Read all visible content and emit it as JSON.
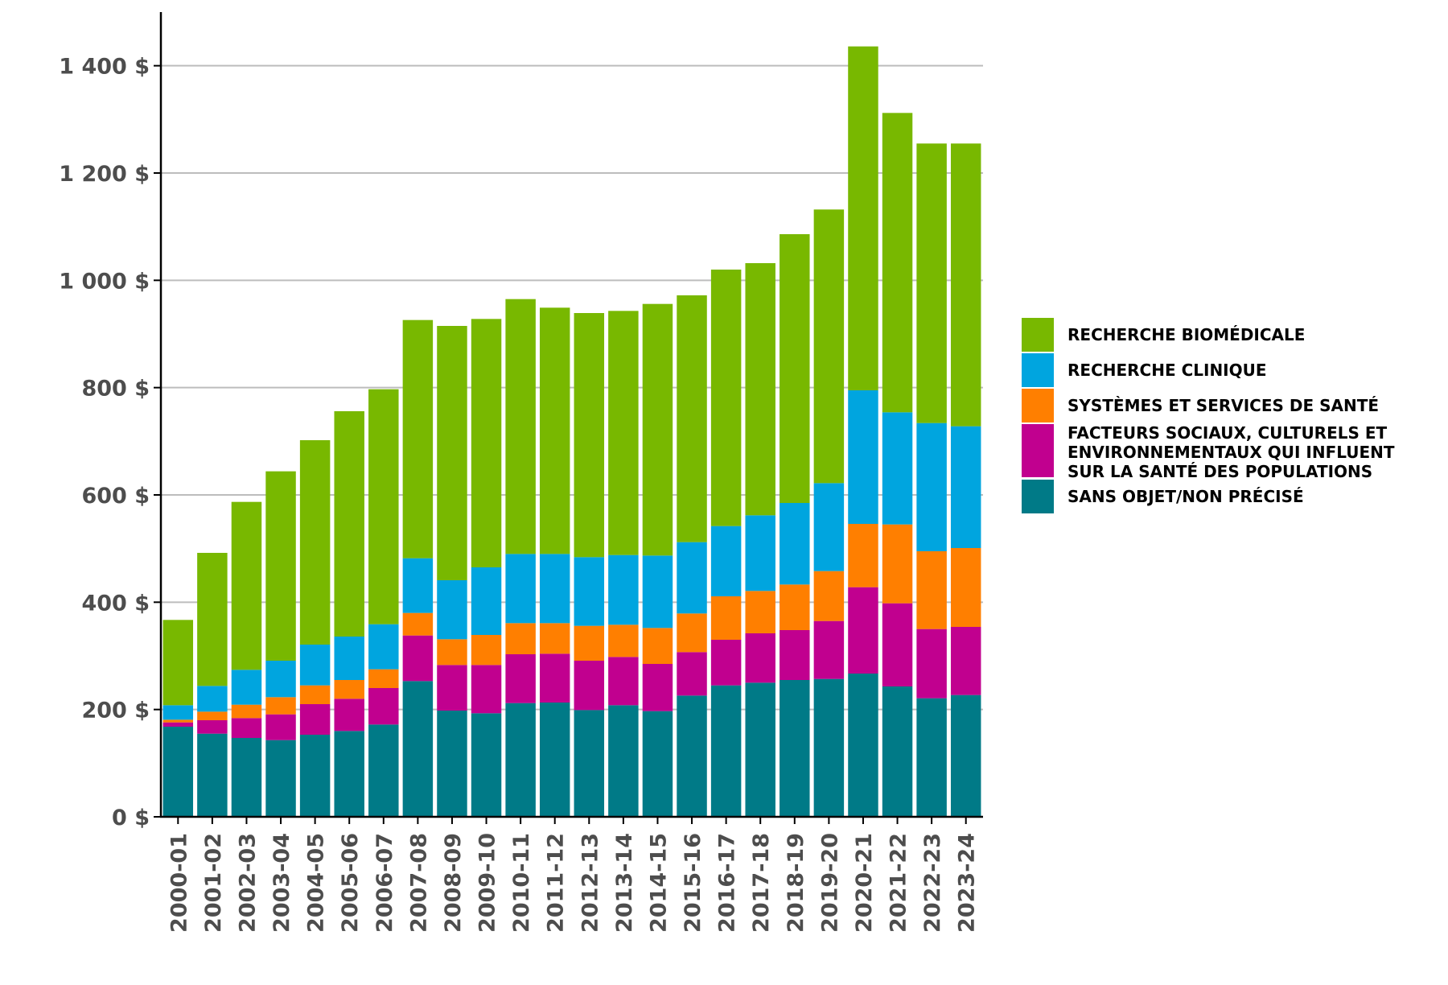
{
  "chart_data": {
    "type": "bar",
    "stacked": true,
    "grid": "horizontal",
    "legend_position": "right",
    "ylim": [
      0,
      1500
    ],
    "yticks": [
      0,
      200,
      400,
      600,
      800,
      1000,
      1200,
      1400
    ],
    "ytick_labels": [
      "0 $",
      "200 $",
      "400 $",
      "600 $",
      "800 $",
      "1 000 $",
      "1 200 $",
      "1 400 $"
    ],
    "categories": [
      "2000-01",
      "2001-02",
      "2002-03",
      "2003-04",
      "2004-05",
      "2005-06",
      "2006-07",
      "2007-08",
      "2008-09",
      "2009-10",
      "2010-11",
      "2011-12",
      "2012-13",
      "2013-14",
      "2014-15",
      "2015-16",
      "2016-17",
      "2017-18",
      "2018-19",
      "2019-20",
      "2020-21",
      "2021-22",
      "2022-23",
      "2023-24"
    ],
    "series": [
      {
        "name": "SANS OBJET/NON PRÉCISÉ",
        "color": "#007a87",
        "values": [
          168,
          155,
          147,
          143,
          153,
          160,
          172,
          253,
          198,
          193,
          212,
          213,
          199,
          208,
          197,
          226,
          245,
          250,
          255,
          257,
          267,
          243,
          221,
          227
        ]
      },
      {
        "name": "FACTEURS SOCIAUX, CULTURELS ET ENVIRONNEMENTAUX QUI INFLUENT SUR LA SANTÉ DES POPULATIONS",
        "color": "#c1008f",
        "values": [
          8,
          25,
          37,
          48,
          57,
          60,
          68,
          85,
          85,
          90,
          91,
          91,
          92,
          90,
          88,
          81,
          85,
          92,
          93,
          108,
          161,
          155,
          129,
          127
        ]
      },
      {
        "name": "SYSTÈMES ET SERVICES DE SANTÉ",
        "color": "#ff7f00",
        "values": [
          5,
          16,
          25,
          32,
          35,
          35,
          35,
          42,
          48,
          56,
          58,
          57,
          65,
          60,
          67,
          72,
          81,
          79,
          85,
          93,
          118,
          147,
          145,
          147
        ]
      },
      {
        "name": "RECHERCHE CLINIQUE",
        "color": "#00a5df",
        "values": [
          27,
          48,
          65,
          68,
          76,
          81,
          84,
          102,
          110,
          126,
          129,
          129,
          128,
          130,
          135,
          133,
          131,
          141,
          152,
          164,
          249,
          209,
          239,
          227
        ]
      },
      {
        "name": "RECHERCHE BIOMÉDICALE",
        "color": "#78b800",
        "values": [
          159,
          248,
          313,
          353,
          381,
          420,
          438,
          444,
          474,
          463,
          475,
          459,
          455,
          455,
          469,
          460,
          478,
          470,
          501,
          510,
          641,
          558,
          521,
          527
        ]
      }
    ]
  }
}
